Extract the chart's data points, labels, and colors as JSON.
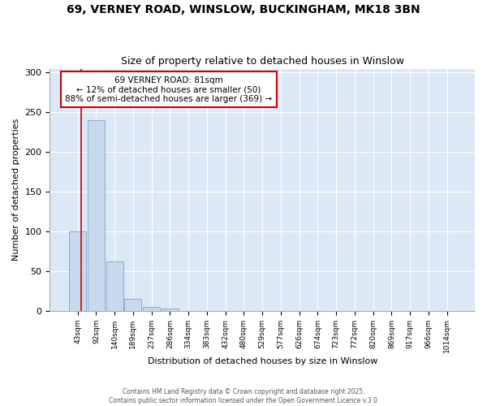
{
  "title1": "69, VERNEY ROAD, WINSLOW, BUCKINGHAM, MK18 3BN",
  "title2": "Size of property relative to detached houses in Winslow",
  "xlabel": "Distribution of detached houses by size in Winslow",
  "ylabel": "Number of detached properties",
  "bin_labels": [
    "43sqm",
    "92sqm",
    "140sqm",
    "189sqm",
    "237sqm",
    "286sqm",
    "334sqm",
    "383sqm",
    "432sqm",
    "480sqm",
    "529sqm",
    "577sqm",
    "626sqm",
    "674sqm",
    "723sqm",
    "772sqm",
    "820sqm",
    "869sqm",
    "917sqm",
    "966sqm",
    "1014sqm"
  ],
  "bar_heights": [
    100,
    240,
    62,
    15,
    5,
    3,
    0,
    0,
    0,
    0,
    0,
    0,
    0,
    0,
    0,
    0,
    0,
    0,
    0,
    0,
    0
  ],
  "bar_color": "#c8d9ed",
  "bar_edge_color": "#7ba3cc",
  "annotation_line1": "69 VERNEY ROAD: 81sqm",
  "annotation_line2": "← 12% of detached houses are smaller (50)",
  "annotation_line3": "88% of semi-detached houses are larger (369) →",
  "annotation_box_color": "#ffffff",
  "annotation_box_edge": "#cc0000",
  "property_line_color": "#cc0000",
  "footer1": "Contains HM Land Registry data © Crown copyright and database right 2025.",
  "footer2": "Contains public sector information licensed under the Open Government Licence v.3.0",
  "ylim": [
    0,
    305
  ],
  "yticks": [
    0,
    50,
    100,
    150,
    200,
    250,
    300
  ],
  "bg_color": "#ffffff",
  "plot_bg_color": "#dce8f5",
  "grid_color": "#ffffff",
  "property_line_x": 0.73
}
